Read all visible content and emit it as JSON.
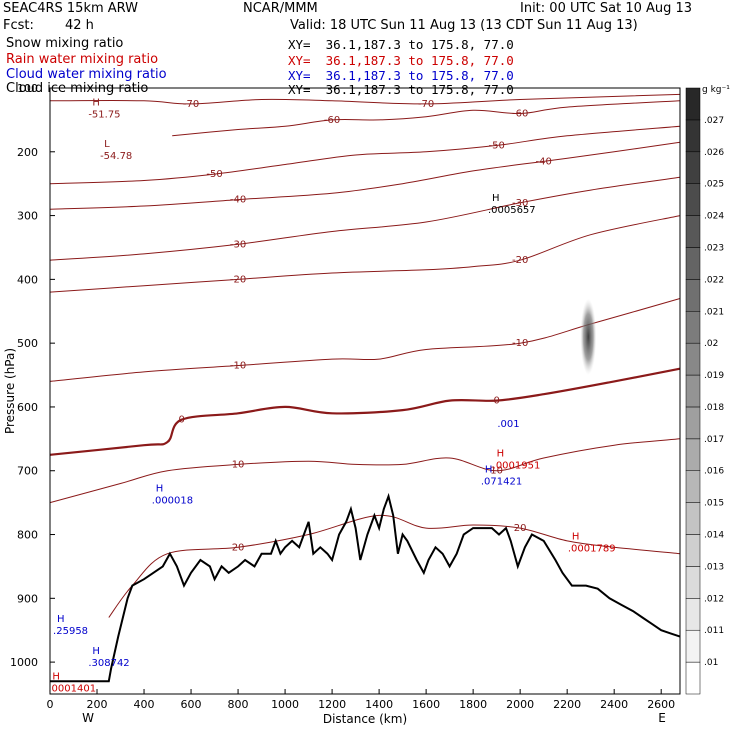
{
  "header": {
    "model": "SEAC4RS 15km ARW",
    "org": "NCAR/MMM",
    "init": "Init: 00 UTC Sat 10 Aug 13",
    "fcst_label": "Fcst:",
    "fcst_value": "42 h",
    "valid": "Valid: 18 UTC Sun 11 Aug 13 (13 CDT Sun 11 Aug 13)",
    "lines": [
      {
        "name": "Snow mixing ratio",
        "xy": "XY=  36.1,187.3 to 175.8, 77.0",
        "color": "#000000"
      },
      {
        "name": "Rain water mixing ratio",
        "xy": "XY=  36.1,187.3 to 175.8, 77.0",
        "color": "#cc0000"
      },
      {
        "name": "Cloud water mixing ratio",
        "xy": "XY=  36.1,187.3 to 175.8, 77.0",
        "color": "#0000cc"
      },
      {
        "name": "Cloud ice mixing ratio",
        "xy": "XY=  36.1,187.3 to 175.8, 77.0",
        "color": "#000000"
      }
    ]
  },
  "chart_data": {
    "type": "contour cross-section",
    "xlabel": "Distance (km)",
    "ylabel": "Pressure (hPa)",
    "xlim": [
      0,
      2680
    ],
    "ylim": [
      1050,
      100
    ],
    "x_ticks": [
      0,
      200,
      400,
      600,
      800,
      1000,
      1200,
      1400,
      1600,
      1800,
      2000,
      2200,
      2400,
      2600
    ],
    "y_ticks": [
      100,
      200,
      300,
      400,
      500,
      600,
      700,
      800,
      900,
      1000
    ],
    "end_labels": {
      "left": "W",
      "right": "E"
    },
    "colorbar": {
      "unit": "g kg⁻¹",
      "levels": [
        ".01",
        ".011",
        ".012",
        ".013",
        ".014",
        ".015",
        ".016",
        ".017",
        ".018",
        ".019",
        ".02",
        ".021",
        ".022",
        ".023",
        ".024",
        ".025",
        ".026",
        ".027"
      ]
    },
    "terrain": [
      [
        0,
        1030
      ],
      [
        250,
        1030
      ],
      [
        260,
        1010
      ],
      [
        290,
        960
      ],
      [
        330,
        900
      ],
      [
        350,
        880
      ],
      [
        400,
        870
      ],
      [
        440,
        860
      ],
      [
        480,
        850
      ],
      [
        510,
        830
      ],
      [
        540,
        850
      ],
      [
        570,
        880
      ],
      [
        600,
        860
      ],
      [
        640,
        840
      ],
      [
        680,
        850
      ],
      [
        700,
        870
      ],
      [
        730,
        850
      ],
      [
        760,
        860
      ],
      [
        800,
        850
      ],
      [
        830,
        840
      ],
      [
        870,
        850
      ],
      [
        900,
        830
      ],
      [
        940,
        830
      ],
      [
        960,
        810
      ],
      [
        980,
        830
      ],
      [
        1000,
        820
      ],
      [
        1030,
        810
      ],
      [
        1060,
        820
      ],
      [
        1080,
        800
      ],
      [
        1100,
        780
      ],
      [
        1120,
        830
      ],
      [
        1150,
        820
      ],
      [
        1180,
        830
      ],
      [
        1200,
        840
      ],
      [
        1230,
        800
      ],
      [
        1260,
        780
      ],
      [
        1280,
        760
      ],
      [
        1300,
        790
      ],
      [
        1320,
        840
      ],
      [
        1350,
        800
      ],
      [
        1380,
        770
      ],
      [
        1400,
        790
      ],
      [
        1420,
        760
      ],
      [
        1440,
        740
      ],
      [
        1460,
        770
      ],
      [
        1480,
        830
      ],
      [
        1500,
        800
      ],
      [
        1520,
        810
      ],
      [
        1560,
        840
      ],
      [
        1590,
        860
      ],
      [
        1610,
        840
      ],
      [
        1640,
        820
      ],
      [
        1670,
        830
      ],
      [
        1700,
        850
      ],
      [
        1730,
        830
      ],
      [
        1760,
        800
      ],
      [
        1800,
        790
      ],
      [
        1850,
        790
      ],
      [
        1880,
        790
      ],
      [
        1910,
        800
      ],
      [
        1940,
        790
      ],
      [
        1960,
        810
      ],
      [
        1990,
        850
      ],
      [
        2020,
        820
      ],
      [
        2050,
        800
      ],
      [
        2100,
        810
      ],
      [
        2150,
        840
      ],
      [
        2180,
        860
      ],
      [
        2220,
        880
      ],
      [
        2280,
        880
      ],
      [
        2330,
        885
      ],
      [
        2380,
        900
      ],
      [
        2430,
        910
      ],
      [
        2480,
        920
      ],
      [
        2520,
        930
      ],
      [
        2560,
        940
      ],
      [
        2600,
        950
      ],
      [
        2640,
        955
      ],
      [
        2680,
        960
      ]
    ],
    "temperature_contours": [
      {
        "value": -70,
        "points": [
          [
            0,
            120
          ],
          [
            400,
            120
          ],
          [
            600,
            125
          ],
          [
            900,
            118
          ],
          [
            1200,
            120
          ],
          [
            1600,
            125
          ],
          [
            2000,
            118
          ],
          [
            2680,
            110
          ]
        ]
      },
      {
        "value": -60,
        "points": [
          [
            520,
            175
          ],
          [
            800,
            165
          ],
          [
            1000,
            160
          ],
          [
            1200,
            150
          ],
          [
            1400,
            150
          ],
          [
            1600,
            145
          ],
          [
            1800,
            135
          ],
          [
            2000,
            140
          ],
          [
            2200,
            130
          ],
          [
            2680,
            120
          ]
        ]
      },
      {
        "value": -50,
        "points": [
          [
            0,
            250
          ],
          [
            400,
            245
          ],
          [
            700,
            235
          ],
          [
            1000,
            220
          ],
          [
            1300,
            205
          ],
          [
            1600,
            200
          ],
          [
            1900,
            190
          ],
          [
            2200,
            175
          ],
          [
            2680,
            160
          ]
        ]
      },
      {
        "value": -40,
        "points": [
          [
            0,
            290
          ],
          [
            400,
            285
          ],
          [
            800,
            275
          ],
          [
            1200,
            265
          ],
          [
            1500,
            250
          ],
          [
            1800,
            230
          ],
          [
            2100,
            215
          ],
          [
            2400,
            200
          ],
          [
            2680,
            185
          ]
        ]
      },
      {
        "value": -30,
        "points": [
          [
            0,
            370
          ],
          [
            400,
            360
          ],
          [
            800,
            345
          ],
          [
            1200,
            325
          ],
          [
            1600,
            310
          ],
          [
            2000,
            280
          ],
          [
            2300,
            260
          ],
          [
            2680,
            240
          ]
        ]
      },
      {
        "value": -20,
        "points": [
          [
            0,
            420
          ],
          [
            400,
            410
          ],
          [
            800,
            400
          ],
          [
            1200,
            390
          ],
          [
            1600,
            385
          ],
          [
            1800,
            380
          ],
          [
            2000,
            370
          ],
          [
            2300,
            330
          ],
          [
            2680,
            300
          ]
        ]
      },
      {
        "value": -10,
        "points": [
          [
            0,
            560
          ],
          [
            400,
            545
          ],
          [
            800,
            535
          ],
          [
            1200,
            525
          ],
          [
            1400,
            525
          ],
          [
            1600,
            510
          ],
          [
            2000,
            500
          ],
          [
            2300,
            470
          ],
          [
            2680,
            430
          ]
        ]
      },
      {
        "value": 0,
        "points": [
          [
            0,
            675
          ],
          [
            400,
            660
          ],
          [
            500,
            655
          ],
          [
            560,
            620
          ],
          [
            800,
            610
          ],
          [
            1000,
            600
          ],
          [
            1200,
            610
          ],
          [
            1500,
            605
          ],
          [
            1700,
            590
          ],
          [
            1900,
            590
          ],
          [
            2100,
            580
          ],
          [
            2400,
            560
          ],
          [
            2680,
            540
          ]
        ]
      },
      {
        "value": 10,
        "points": [
          [
            0,
            750
          ],
          [
            300,
            720
          ],
          [
            500,
            700
          ],
          [
            800,
            690
          ],
          [
            1100,
            685
          ],
          [
            1300,
            690
          ],
          [
            1500,
            690
          ],
          [
            1700,
            680
          ],
          [
            1900,
            700
          ],
          [
            2100,
            680
          ],
          [
            2400,
            660
          ],
          [
            2680,
            650
          ]
        ]
      },
      {
        "value": 20,
        "points": [
          [
            250,
            930
          ],
          [
            350,
            880
          ],
          [
            500,
            830
          ],
          [
            800,
            820
          ],
          [
            1100,
            800
          ],
          [
            1400,
            770
          ],
          [
            1600,
            790
          ],
          [
            1800,
            785
          ],
          [
            2000,
            790
          ],
          [
            2200,
            810
          ],
          [
            2400,
            820
          ],
          [
            2680,
            830
          ]
        ]
      }
    ],
    "maxima_labels": [
      {
        "mark": "H",
        "value": "-51.75",
        "x": 180,
        "p": 140,
        "color": "#8b1a1a"
      },
      {
        "mark": "L",
        "value": "-54.78",
        "x": 230,
        "p": 205,
        "color": "#8b1a1a"
      },
      {
        "mark": "H",
        "value": ".0005657",
        "x": 1880,
        "p": 290,
        "color": "#000000"
      },
      {
        "mark": "H",
        "value": ".0001951",
        "x": 1900,
        "p": 690,
        "color": "#cc0000"
      },
      {
        "mark": "H",
        "value": ".0001789",
        "x": 2220,
        "p": 820,
        "color": "#cc0000"
      },
      {
        "mark": "H",
        "value": ".000018",
        "x": 450,
        "p": 745,
        "color": "#0000cc"
      },
      {
        "mark": "H",
        "value": ".071421",
        "x": 1850,
        "p": 715,
        "color": "#0000cc"
      },
      {
        "mark": "",
        "value": ".001",
        "x": 1920,
        "p": 625,
        "color": "#0000cc"
      },
      {
        "mark": "H",
        "value": ".25958",
        "x": 30,
        "p": 950,
        "color": "#0000cc"
      },
      {
        "mark": "H",
        "value": ".308742",
        "x": 180,
        "p": 1000,
        "color": "#0000cc"
      },
      {
        "mark": "H",
        "value": ".0001401",
        "x": 10,
        "p": 1040,
        "color": "#cc0000"
      }
    ]
  }
}
